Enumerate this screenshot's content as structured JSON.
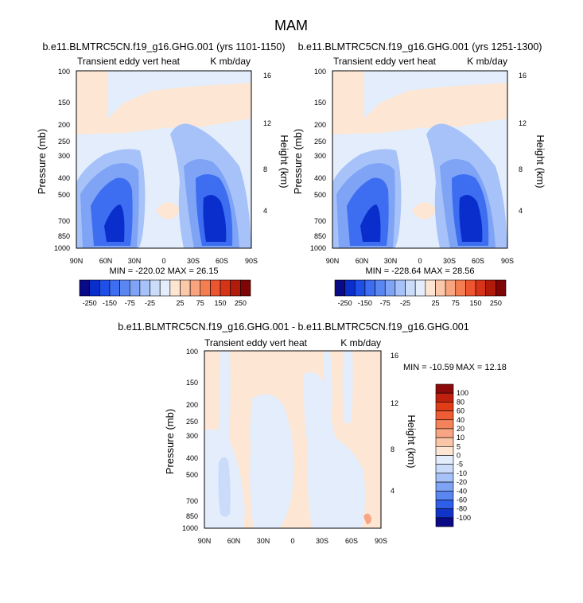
{
  "figure_title": "MAM",
  "chart_data": [
    {
      "type": "heatmap",
      "title": "b.e11.BLMTRC5CN.f19_g16.GHG.001 (yrs 1101-1150)",
      "left_label": "Transient eddy vert heat",
      "right_label": "K mb/day",
      "xlabel": "",
      "ylabel": "Pressure (mb)",
      "ylabel_right": "Height (km)",
      "x_ticks": [
        "90N",
        "60N",
        "30N",
        "0",
        "30S",
        "60S",
        "90S"
      ],
      "y_ticks": [
        "100",
        "150",
        "200",
        "250",
        "300",
        "400",
        "500",
        "700",
        "850",
        "1000"
      ],
      "y_ticks_right": [
        "16",
        "12",
        "8",
        "4"
      ],
      "xlim": [
        90,
        -90
      ],
      "ylim": [
        1000,
        100
      ],
      "y_scale": "log",
      "stats": "MIN = -220.02   MAX = 26.15",
      "features": [
        {
          "lat": 50,
          "p": 650,
          "value": -220
        },
        {
          "lat": -50,
          "p": 600,
          "value": -200
        },
        {
          "lat": 0,
          "p": 550,
          "value": 15
        }
      ]
    },
    {
      "type": "heatmap",
      "title": "b.e11.BLMTRC5CN.f19_g16.GHG.001 (yrs 1251-1300)",
      "left_label": "Transient eddy vert heat",
      "right_label": "K mb/day",
      "xlabel": "",
      "ylabel": "Pressure (mb)",
      "ylabel_right": "Height (km)",
      "x_ticks": [
        "90N",
        "60N",
        "30N",
        "0",
        "30S",
        "60S",
        "90S"
      ],
      "y_ticks": [
        "100",
        "150",
        "200",
        "250",
        "300",
        "400",
        "500",
        "700",
        "850",
        "1000"
      ],
      "y_ticks_right": [
        "16",
        "12",
        "8",
        "4"
      ],
      "xlim": [
        90,
        -90
      ],
      "ylim": [
        1000,
        100
      ],
      "y_scale": "log",
      "stats": "MIN = -228.64   MAX = 28.56",
      "features": [
        {
          "lat": 50,
          "p": 650,
          "value": -225
        },
        {
          "lat": -50,
          "p": 600,
          "value": -205
        },
        {
          "lat": 0,
          "p": 550,
          "value": 15
        }
      ]
    },
    {
      "type": "heatmap",
      "title": "b.e11.BLMTRC5CN.f19_g16.GHG.001 - b.e11.BLMTRC5CN.f19_g16.GHG.001",
      "left_label": "Transient eddy vert heat",
      "right_label": "K mb/day",
      "xlabel": "",
      "ylabel": "Pressure (mb)",
      "ylabel_right": "Height (km)",
      "x_ticks": [
        "90N",
        "60N",
        "30N",
        "0",
        "30S",
        "60S",
        "90S"
      ],
      "y_ticks": [
        "100",
        "150",
        "200",
        "250",
        "300",
        "400",
        "500",
        "700",
        "850",
        "1000"
      ],
      "y_ticks_right": [
        "16",
        "12",
        "8",
        "4"
      ],
      "xlim": [
        90,
        -90
      ],
      "ylim": [
        1000,
        100
      ],
      "y_scale": "log",
      "stats_min": "MIN = -10.59",
      "stats_max": "MAX =  12.18",
      "features": [
        {
          "lat": 62,
          "p": 600,
          "value": -10
        },
        {
          "lat": -80,
          "p": 950,
          "value": 10
        }
      ]
    }
  ],
  "colorbar_top": {
    "orientation": "horizontal",
    "labels": [
      "-250",
      "-150",
      "-75",
      "-25",
      "25",
      "75",
      "150",
      "250"
    ],
    "colors": [
      "#0a0a86",
      "#0a2ecc",
      "#1f4fe6",
      "#3d6df0",
      "#5a86f2",
      "#7fa3f5",
      "#a6c2f8",
      "#cadcfa",
      "#e3edfc",
      "#fde5d2",
      "#fbc8aa",
      "#f8a47e",
      "#f47e52",
      "#ec5530",
      "#d63418",
      "#b01b0c",
      "#7f0606"
    ]
  },
  "colorbar_diff": {
    "orientation": "vertical",
    "labels": [
      "100",
      "80",
      "60",
      "40",
      "20",
      "10",
      "5",
      "0",
      "-5",
      "-10",
      "-20",
      "-40",
      "-60",
      "-80",
      "-100"
    ],
    "colors": [
      "#8c0a0a",
      "#c0200e",
      "#e03c18",
      "#ef5d34",
      "#f4825a",
      "#f7a582",
      "#fac6a8",
      "#fde6d3",
      "#e3edfc",
      "#cadcfa",
      "#a6c2f8",
      "#7fa3f5",
      "#5a86f2",
      "#2f5ee8",
      "#1034c8",
      "#0a0a86"
    ]
  }
}
